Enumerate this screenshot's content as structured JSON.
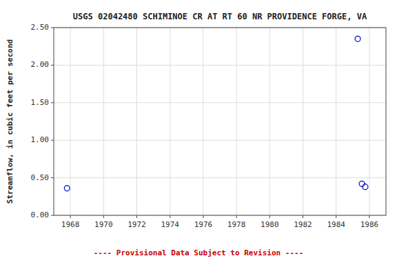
{
  "chart_data": {
    "type": "scatter",
    "title": "USGS 02042480 SCHIMINOE CR AT RT 60 NR PROVIDENCE FORGE, VA",
    "ylabel": "Streamflow, in cubic feet per second",
    "annotations": [
      {
        "text": "---- Provisional Data Subject to Revision ----",
        "color": "#cc0000"
      }
    ],
    "x": [
      1967.8,
      1985.3,
      1985.55,
      1985.75
    ],
    "values": [
      0.36,
      2.35,
      0.42,
      0.38
    ],
    "color": "#0000cc",
    "marker": "open-circle",
    "xlim": [
      1967,
      1987
    ],
    "ylim": [
      0.0,
      2.5
    ],
    "xticks": [
      1968,
      1970,
      1972,
      1974,
      1976,
      1978,
      1980,
      1982,
      1984,
      1986
    ],
    "yticks": [
      {
        "value": 0.0,
        "label": "0.00"
      },
      {
        "value": 0.5,
        "label": "0.50"
      },
      {
        "value": 1.0,
        "label": "1.00"
      },
      {
        "value": 1.5,
        "label": "1.50"
      },
      {
        "value": 2.0,
        "label": "2.00"
      },
      {
        "value": 2.5,
        "label": "2.50"
      }
    ],
    "grid": true
  }
}
